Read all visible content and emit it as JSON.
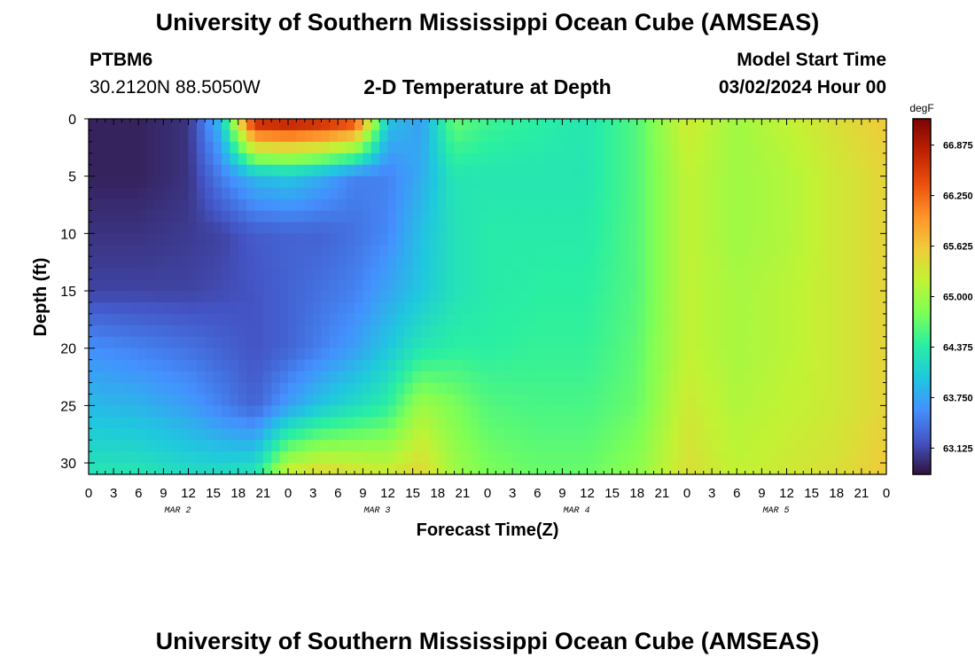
{
  "header": {
    "title": "University of Southern Mississippi Ocean Cube (AMSEAS)",
    "station_id": "PTBM6",
    "coords": "30.2120N  88.5050W",
    "plot_title": "2-D Temperature at Depth",
    "start_label": "Model Start Time",
    "start_value": "03/02/2024 Hour 00"
  },
  "footer": {
    "title": "University of Southern Mississippi Ocean Cube (AMSEAS)"
  },
  "chart_data": {
    "type": "heatmap",
    "xlabel": "Forecast Time(Z)",
    "ylabel": "Depth (ft)",
    "xlim": [
      0,
      96
    ],
    "ylim": [
      31,
      0
    ],
    "x_tick_labels": [
      "0",
      "3",
      "6",
      "9",
      "12",
      "15",
      "18",
      "21",
      "0",
      "3",
      "6",
      "9",
      "12",
      "15",
      "18",
      "21",
      "0",
      "3",
      "6",
      "9",
      "12",
      "15",
      "18",
      "21",
      "0",
      "3",
      "6",
      "9",
      "12",
      "15",
      "18",
      "21",
      "0"
    ],
    "y_ticks": [
      0,
      5,
      10,
      15,
      20,
      25,
      30
    ],
    "day_labels": [
      "MAR 2",
      "MAR 3",
      "MAR 4",
      "MAR 5"
    ],
    "colorbar": {
      "unit": "degF",
      "min": 62.8,
      "max": 67.2,
      "ticks": [
        63.125,
        63.75,
        64.375,
        65.0,
        65.625,
        66.25,
        66.875
      ],
      "tick_labels": [
        "63.125",
        "63.750",
        "64.375",
        "65.000",
        "65.625",
        "66.250",
        "66.875"
      ],
      "colors": [
        "#30123b",
        "#4454c4",
        "#4490fe",
        "#1fc8de",
        "#29efa2",
        "#7dff56",
        "#c1f334",
        "#f1ca3a",
        "#fe922a",
        "#ea4f0d",
        "#be2102",
        "#7a0403"
      ]
    },
    "depths": [
      0,
      5,
      10,
      15,
      20,
      25,
      31
    ],
    "times": [
      0,
      6,
      12,
      16,
      20,
      24,
      28,
      32,
      36,
      40,
      44,
      48,
      54,
      60,
      66,
      72,
      78,
      84,
      90,
      96
    ],
    "values": [
      [
        62.9,
        62.9,
        63.0,
        64.0,
        66.9,
        67.0,
        66.9,
        66.6,
        64.0,
        63.7,
        64.7,
        64.5,
        64.4,
        64.3,
        64.6,
        65.3,
        65.0,
        65.2,
        65.4,
        65.6
      ],
      [
        62.9,
        62.9,
        63.0,
        63.5,
        63.9,
        64.0,
        63.8,
        63.5,
        63.5,
        63.8,
        64.3,
        64.3,
        64.3,
        64.3,
        64.6,
        65.2,
        65.0,
        65.1,
        65.3,
        65.5
      ],
      [
        63.0,
        63.0,
        63.05,
        63.1,
        63.25,
        63.3,
        63.3,
        63.4,
        63.55,
        63.95,
        64.25,
        64.35,
        64.35,
        64.35,
        64.6,
        65.2,
        65.0,
        65.1,
        65.3,
        65.5
      ],
      [
        63.1,
        63.1,
        63.1,
        63.15,
        63.2,
        63.3,
        63.4,
        63.5,
        63.75,
        64.0,
        64.25,
        64.35,
        64.4,
        64.4,
        64.6,
        65.2,
        65.05,
        65.15,
        65.3,
        65.5
      ],
      [
        63.6,
        63.5,
        63.4,
        63.3,
        63.2,
        63.3,
        63.5,
        63.7,
        64.0,
        64.3,
        64.4,
        64.4,
        64.45,
        64.45,
        64.65,
        65.2,
        65.05,
        65.15,
        65.3,
        65.5
      ],
      [
        63.9,
        63.85,
        63.7,
        63.5,
        63.3,
        63.7,
        64.0,
        64.2,
        64.4,
        65.0,
        64.8,
        64.6,
        64.55,
        64.55,
        64.7,
        65.3,
        65.1,
        65.2,
        65.3,
        65.5
      ],
      [
        64.3,
        64.3,
        64.2,
        64.2,
        64.3,
        65.3,
        65.5,
        65.4,
        65.3,
        65.5,
        65.0,
        64.8,
        64.7,
        64.7,
        64.9,
        65.4,
        65.2,
        65.3,
        65.4,
        65.6
      ]
    ]
  }
}
